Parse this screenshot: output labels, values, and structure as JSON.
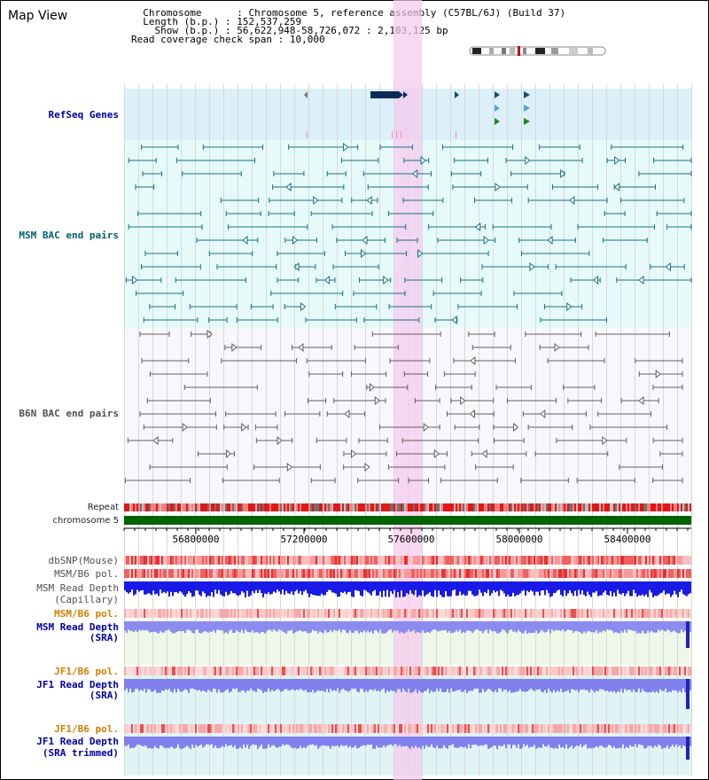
{
  "page": {
    "title": "Map View"
  },
  "header": {
    "chromosome_label": "Chromosome",
    "chromosome_value": "Chromosome 5, reference assembly (C57BL/6J) (Build 37)",
    "length_label": "Length (b.p.)",
    "length_value": "152,537,259",
    "show_label": "Show (b.p.)",
    "show_value": "56,622,948-58,726,072 : 2,103,125 bp",
    "coverage_label": "Read coverage check span",
    "coverage_value": "10,000"
  },
  "tracks": {
    "refseq": "RefSeq Genes",
    "msm_bac": "MSM BAC end pairs",
    "b6n_bac": "B6N BAC end pairs",
    "repeat": "Repeat",
    "chromosome": "chromosome 5",
    "dbsnp": "dbSNP(Mouse)",
    "msm_b6_pol_1": "MSM/B6 pol.",
    "msm_read_depth_cap_1": "MSM Read Depth",
    "msm_read_depth_cap_2": "(Capillary)",
    "msm_b6_pol_2": "MSM/B6 pol.",
    "msm_read_depth_sra_1": "MSM Read Depth",
    "msm_read_depth_sra_2": "(SRA)",
    "jf1_b6_pol_1": "JF1/B6 pol.",
    "jf1_read_depth_sra_1": "JF1 Read Depth",
    "jf1_read_depth_sra_2": "(SRA)",
    "jf1_b6_pol_2": "JF1/B6 pol.",
    "jf1_read_depth_trim_1": "JF1 Read Depth",
    "jf1_read_depth_trim_2": "(SRA trimmed)"
  },
  "axis": {
    "ticks": [
      "56800000",
      "57200000",
      "57600000",
      "58000000",
      "58400000"
    ]
  },
  "colors": {
    "refseq_bg": "#dcf0fa",
    "msm_bg": "#e6fafa",
    "b6n_bg": "#f8f8fc",
    "highlight": "#f5d2f0",
    "gene": "#0a2a5a",
    "msm_pair": "#1a7080",
    "b6n_pair": "#606060",
    "chromosome_bar": "#006400",
    "depth_blue": "#1a1ae6",
    "depth_light": "#8c8cf0"
  }
}
